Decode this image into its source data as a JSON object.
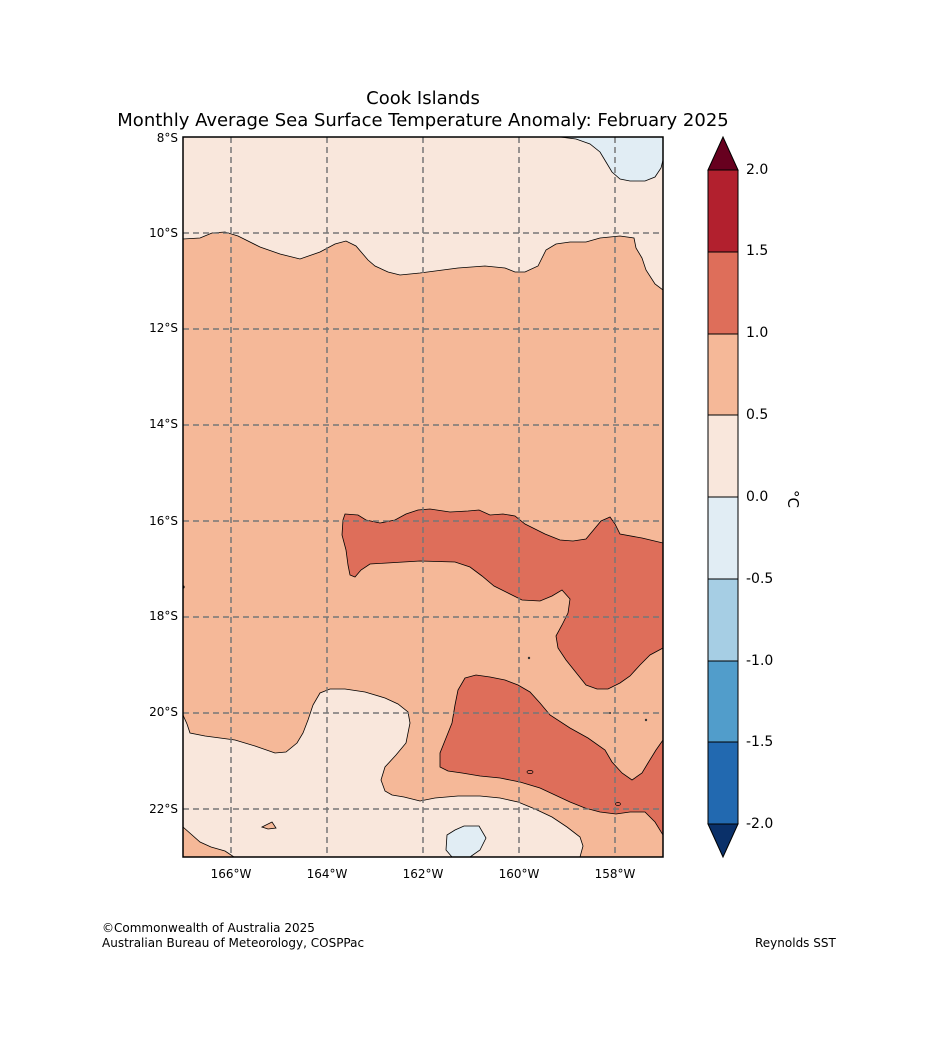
{
  "title": {
    "line1": "Cook Islands",
    "line2": "Monthly Average Sea Surface Temperature Anomaly: February 2025"
  },
  "axes": {
    "lat_labels": [
      "8°S",
      "10°S",
      "12°S",
      "14°S",
      "16°S",
      "18°S",
      "20°S",
      "22°S"
    ],
    "lon_labels": [
      "166°W",
      "164°W",
      "162°W",
      "160°W",
      "158°W"
    ],
    "lat_range": [
      -23,
      -8
    ],
    "lon_range": [
      -167,
      -157
    ]
  },
  "legend": {
    "unit": "°C",
    "levels": [
      "2.0",
      "1.5",
      "1.0",
      "0.5",
      "0.0",
      "-0.5",
      "-1.0",
      "-1.5",
      "-2.0"
    ],
    "colors": {
      "above_2": "#67001f",
      "1.5_2.0": "#b2202e",
      "1.0_1.5": "#de6e5a",
      "0.5_1.0": "#f5b898",
      "0.0_0.5": "#f9e7dc",
      "-0.5_0.0": "#e1edf4",
      "-1.0_-0.5": "#a6cee4",
      "-1.5_-1.0": "#519dcb",
      "-2.0_-1.5": "#2269b0",
      "below_-2": "#0a3069"
    }
  },
  "footer": {
    "copyright": "©Commonwealth of Australia 2025",
    "agency": "Australian Bureau of Meteorology, COSPPac",
    "source": "Reynolds SST"
  }
}
